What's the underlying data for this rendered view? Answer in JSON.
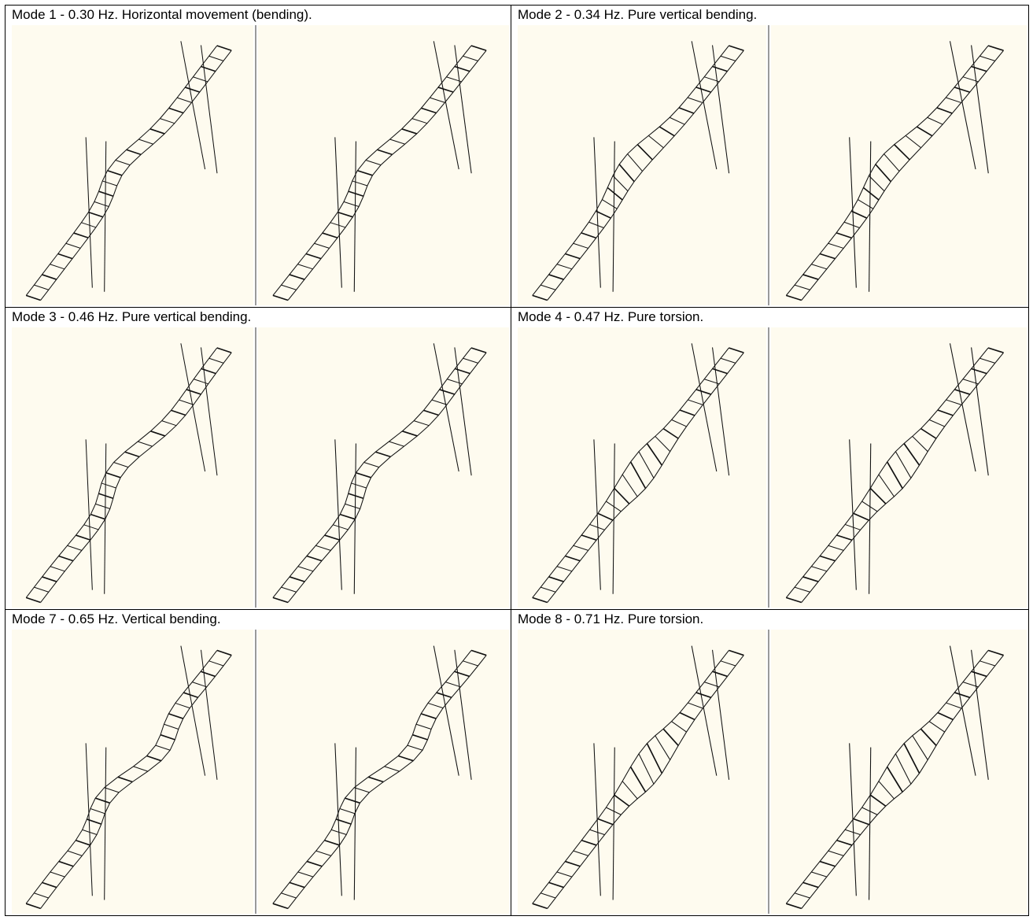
{
  "figure": {
    "cells": [
      {
        "caption": "Mode 1 -  0.30 Hz. Horizontal movement (bending).",
        "deform": "horizontal"
      },
      {
        "caption": "Mode 2 -  0.34 Hz. Pure vertical bending.",
        "deform": "vertical1"
      },
      {
        "caption": "Mode 3 -  0.46 Hz. Pure vertical bending.",
        "deform": "vertical2"
      },
      {
        "caption": "Mode 4 -  0.47 Hz. Pure torsion.",
        "deform": "torsion1"
      },
      {
        "caption": "Mode 7 -  0.65 Hz. Vertical bending.",
        "deform": "vertical3"
      },
      {
        "caption": "Mode 8 -  0.71 Hz. Pure torsion.",
        "deform": "torsion2"
      }
    ],
    "colors": {
      "panel_bg": "#fefbef",
      "line": "#111111",
      "divider": "#9a9a9a",
      "border": "#000000"
    }
  }
}
